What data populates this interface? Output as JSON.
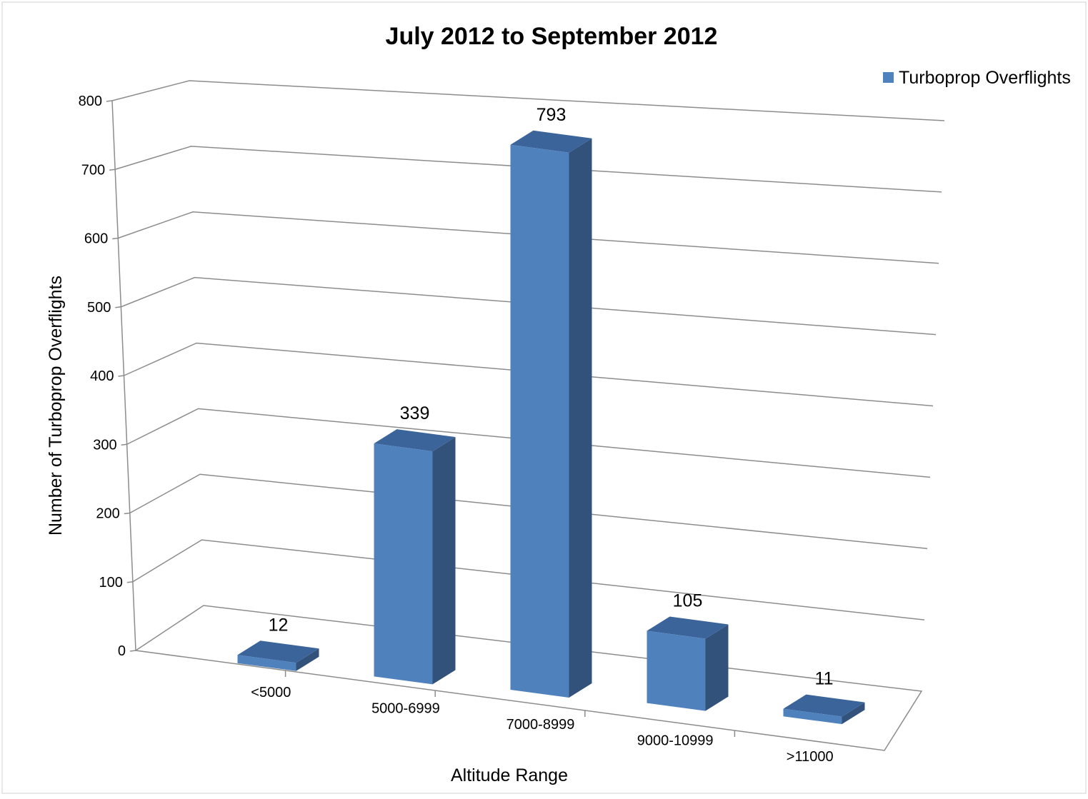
{
  "chart_data": {
    "type": "bar",
    "style": "3d-column",
    "title": "July 2012 to September 2012",
    "xlabel": "Altitude Range",
    "ylabel": "Number of Turboprop Overflights",
    "categories": [
      "<5000",
      "5000-6999",
      "7000-8999",
      "9000-10999",
      ">11000"
    ],
    "series": [
      {
        "name": "Turboprop Overflights",
        "values": [
          12,
          339,
          793,
          105,
          11
        ],
        "color": "#4F81BD"
      }
    ],
    "ylim": [
      0,
      800
    ],
    "yticks": [
      "0",
      "100",
      "200",
      "300",
      "400",
      "500",
      "600",
      "700",
      "800"
    ],
    "grid": true,
    "legend": "top-right",
    "data_labels": [
      "12",
      "339",
      "793",
      "105",
      "11"
    ]
  },
  "colors": {
    "front": "#4F81BD",
    "side": "#33527B",
    "top": "#3B649A",
    "grid": "#8C8C8C"
  }
}
